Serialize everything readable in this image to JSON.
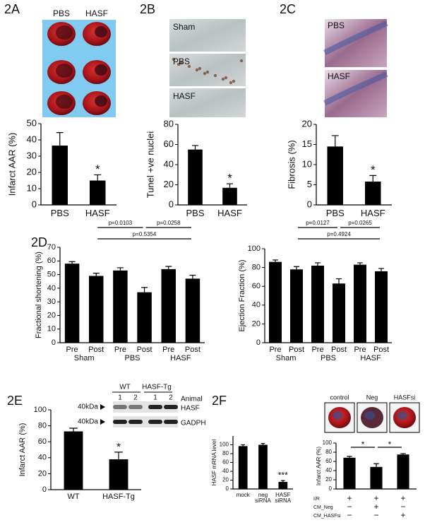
{
  "chart_data": [
    {
      "type": "bar",
      "panel": "2A",
      "image_labels": [
        "PBS",
        "HASF"
      ],
      "ylabel": "Infarct AAR (%)",
      "categories": [
        "PBS",
        "HASF"
      ],
      "values": [
        36.5,
        15
      ],
      "errors": [
        8,
        3.5
      ],
      "ylim": [
        0,
        50
      ],
      "yticks": [
        0,
        10,
        20,
        30,
        40,
        50
      ],
      "color": "#000000",
      "annotations": [
        {
          "text": "*",
          "category": "HASF"
        }
      ]
    },
    {
      "type": "bar",
      "panel": "2B",
      "image_labels": [
        "Sham",
        "PBS",
        "HASF"
      ],
      "ylabel": "Tunel +ve nuclei",
      "categories": [
        "PBS",
        "HASF"
      ],
      "values": [
        55,
        17
      ],
      "errors": [
        4,
        4
      ],
      "ylim": [
        0,
        80
      ],
      "yticks": [
        0,
        20,
        40,
        60,
        80
      ],
      "color": "#000000",
      "annotations": [
        {
          "text": "*",
          "category": "HASF"
        }
      ]
    },
    {
      "type": "bar",
      "panel": "2C",
      "image_labels": [
        "PBS",
        "HASF"
      ],
      "ylabel": "Fibrosis (%)",
      "categories": [
        "PBS",
        "HASF"
      ],
      "values": [
        14.5,
        5.8
      ],
      "errors": [
        2.7,
        1.5
      ],
      "ylim": [
        0,
        20
      ],
      "yticks": [
        0,
        5,
        10,
        15,
        20
      ],
      "color": "#000000",
      "annotations": [
        {
          "text": "*",
          "category": "HASF"
        }
      ]
    },
    {
      "type": "bar",
      "panel": "2D",
      "ylabel": "Fractional shortening (%)",
      "categories": [
        "Pre",
        "Post",
        "Pre",
        "Post",
        "Pre",
        "Post"
      ],
      "groups": [
        "Sham",
        "PBS",
        "HASF"
      ],
      "values": [
        58,
        49,
        53,
        37,
        54,
        47
      ],
      "errors": [
        1.5,
        2,
        2,
        3.5,
        2,
        2.5
      ],
      "ylim": [
        0,
        70
      ],
      "yticks": [
        0,
        10,
        20,
        30,
        40,
        50,
        60,
        70
      ],
      "color": "#000000",
      "comparisons": [
        {
          "text": "p=0.0103",
          "groups": [
            "Sham",
            "PBS"
          ]
        },
        {
          "text": "p=0.0258",
          "groups": [
            "PBS",
            "HASF"
          ]
        },
        {
          "text": "p=0.5354",
          "groups": [
            "Sham",
            "HASF"
          ]
        }
      ]
    },
    {
      "type": "bar",
      "ylabel": "Ejection Fraction (%)",
      "categories": [
        "Pre",
        "Post",
        "Pre",
        "Post",
        "Pre",
        "Post"
      ],
      "groups": [
        "Sham",
        "PBS",
        "HASF"
      ],
      "values": [
        86,
        78,
        82,
        63,
        83,
        76
      ],
      "errors": [
        2,
        3,
        3,
        5,
        2,
        3
      ],
      "ylim": [
        0,
        100
      ],
      "yticks": [
        0,
        20,
        40,
        60,
        80,
        100
      ],
      "color": "#000000",
      "comparisons": [
        {
          "text": "p=0.0127",
          "groups": [
            "Sham",
            "PBS"
          ]
        },
        {
          "text": "p=0.0265",
          "groups": [
            "PBS",
            "HASF"
          ]
        },
        {
          "text": "p=0.4924",
          "groups": [
            "Sham",
            "HASF"
          ]
        }
      ]
    },
    {
      "type": "bar",
      "panel": "2E",
      "ylabel": "Infarct AAR (%)",
      "categories": [
        "WT",
        "HASF-Tg"
      ],
      "values": [
        73,
        38
      ],
      "errors": [
        4,
        9
      ],
      "ylim": [
        0,
        100
      ],
      "yticks": [
        0,
        20,
        40,
        60,
        80,
        100
      ],
      "color": "#000000",
      "annotations": [
        {
          "text": "*",
          "category": "HASF-Tg"
        }
      ],
      "blot": {
        "groups": [
          "WT",
          "HASF-Tg"
        ],
        "lanes": [
          "1",
          "2",
          "1",
          "2"
        ],
        "lane_title": "Animal",
        "markers": [
          "40kDa",
          "40kDa"
        ],
        "bands": [
          "HASF",
          "GADPH"
        ]
      }
    },
    {
      "type": "bar",
      "panel": "2F",
      "ylabel": "HASF mRNA level",
      "categories": [
        "mock",
        "neg siRNA",
        "HASF siRNA"
      ],
      "values": [
        97,
        100,
        16
      ],
      "errors": [
        3,
        3,
        3
      ],
      "ylim": [
        0,
        120
      ],
      "yticks": [
        0,
        20,
        40,
        60,
        80,
        100
      ],
      "color": "#000000",
      "annotations": [
        {
          "text": "***",
          "category": "HASF siRNA"
        }
      ]
    },
    {
      "type": "bar",
      "ylabel": "Infarct AAR (%)",
      "categories": [
        "control",
        "Neg",
        "HASFsi"
      ],
      "values": [
        68,
        48,
        75
      ],
      "errors": [
        3,
        7,
        2
      ],
      "ylim": [
        0,
        100
      ],
      "yticks": [
        0,
        20,
        40,
        60,
        80,
        100
      ],
      "color": "#000000",
      "comparisons": [
        {
          "text": "*",
          "categories": [
            "control",
            "Neg"
          ]
        },
        {
          "text": "*",
          "categories": [
            "Neg",
            "HASFsi"
          ]
        }
      ],
      "conditions": [
        {
          "name": "I/R",
          "values": [
            "+",
            "+",
            "+"
          ]
        },
        {
          "name": "CM_Neg",
          "values": [
            "−",
            "+",
            "−"
          ]
        },
        {
          "name": "CM_HASFsi",
          "values": [
            "−",
            "−",
            "+"
          ]
        }
      ]
    }
  ]
}
